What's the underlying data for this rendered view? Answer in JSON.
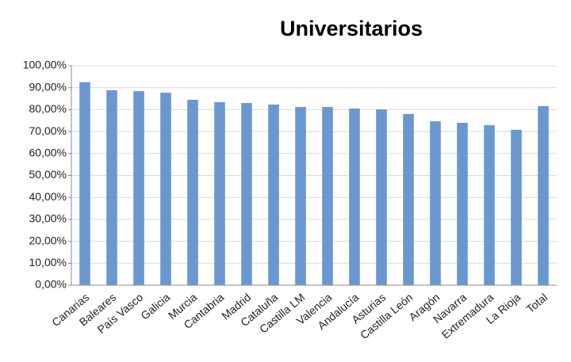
{
  "chart_data": {
    "type": "bar",
    "title": "Universitarios",
    "categories": [
      "Canarias",
      "Baleares",
      "País Vasco",
      "Galicia",
      "Murcia",
      "Cantabria",
      "Madrid",
      "Cataluña",
      "Castilla LM",
      "Valencia",
      "Andalucía",
      "Asturias",
      "Castilla León",
      "Aragón",
      "Navarra",
      "Extremadura",
      "La Rioja",
      "Total"
    ],
    "values": [
      92.5,
      88.8,
      88.4,
      87.7,
      84.5,
      83.4,
      83.0,
      82.3,
      81.2,
      81.2,
      80.5,
      80.1,
      78.0,
      74.7,
      74.0,
      72.9,
      70.8,
      81.6
    ],
    "color": "#6a97d0",
    "ylim": [
      0,
      100
    ],
    "yticks": [
      {
        "value": 0,
        "label": "0,00%"
      },
      {
        "value": 10,
        "label": "10,00%"
      },
      {
        "value": 20,
        "label": "20,00%"
      },
      {
        "value": 30,
        "label": "30,00%"
      },
      {
        "value": 40,
        "label": "40,00%"
      },
      {
        "value": 50,
        "label": "50,00%"
      },
      {
        "value": 60,
        "label": "60,00%"
      },
      {
        "value": 70,
        "label": "70,00%"
      },
      {
        "value": 80,
        "label": "80,00%"
      },
      {
        "value": 90,
        "label": "90,00%"
      },
      {
        "value": 100,
        "label": "100,00%"
      }
    ],
    "grid": true
  }
}
